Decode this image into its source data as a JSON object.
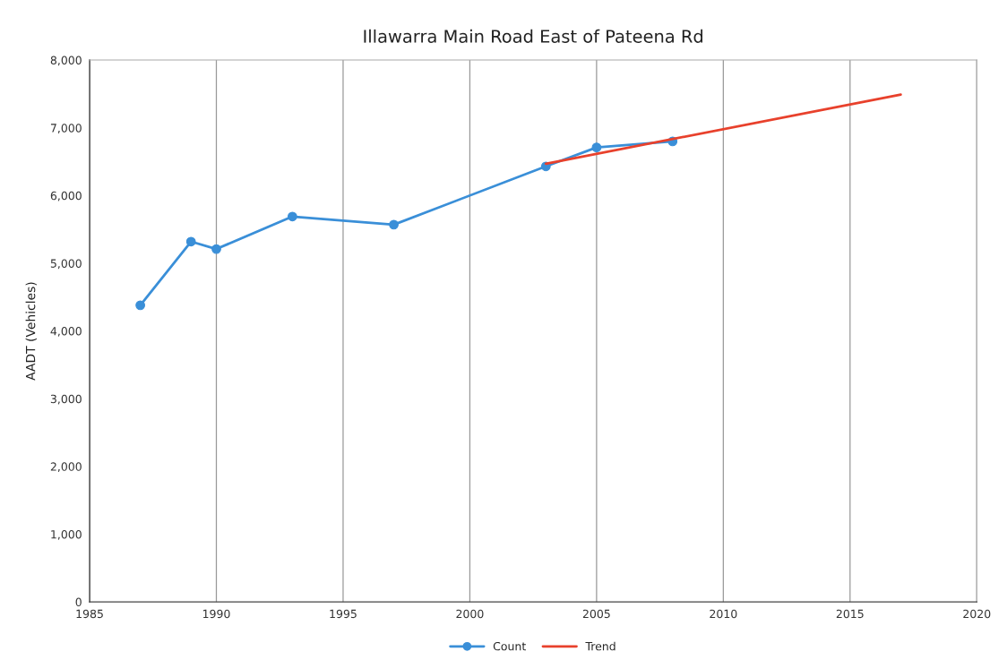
{
  "chart_data": {
    "type": "line",
    "title": "Illawarra Main Road East of Pateena Rd",
    "ylabel": "AADT (Vehicles)",
    "series": [
      {
        "name": "Count",
        "color": "#3a8fd8",
        "marker": "circle",
        "x": [
          1987,
          1989,
          1990,
          1993,
          1997,
          2003,
          2005,
          2008
        ],
        "values": [
          4380,
          5320,
          5210,
          5690,
          5570,
          6430,
          6710,
          6800
        ]
      },
      {
        "name": "Trend",
        "color": "#e8412c",
        "x": [
          2003,
          2017
        ],
        "values": [
          6470,
          7490
        ]
      }
    ],
    "xlim": [
      1985,
      2020
    ],
    "xticks": [
      1985,
      1990,
      1995,
      2000,
      2005,
      2010,
      2015,
      2020
    ],
    "ylim": [
      0,
      8000
    ],
    "yticks": [
      {
        "value": 0,
        "label": "0"
      },
      {
        "value": 1000,
        "label": "1,000"
      },
      {
        "value": 2000,
        "label": "2,000"
      },
      {
        "value": 3000,
        "label": "3,000"
      },
      {
        "value": 4000,
        "label": "4,000"
      },
      {
        "value": 5000,
        "label": "5,000"
      },
      {
        "value": 6000,
        "label": "6,000"
      },
      {
        "value": 7000,
        "label": "7,000"
      },
      {
        "value": 8000,
        "label": "8,000"
      }
    ],
    "grid": "x",
    "legend": "bottom"
  }
}
